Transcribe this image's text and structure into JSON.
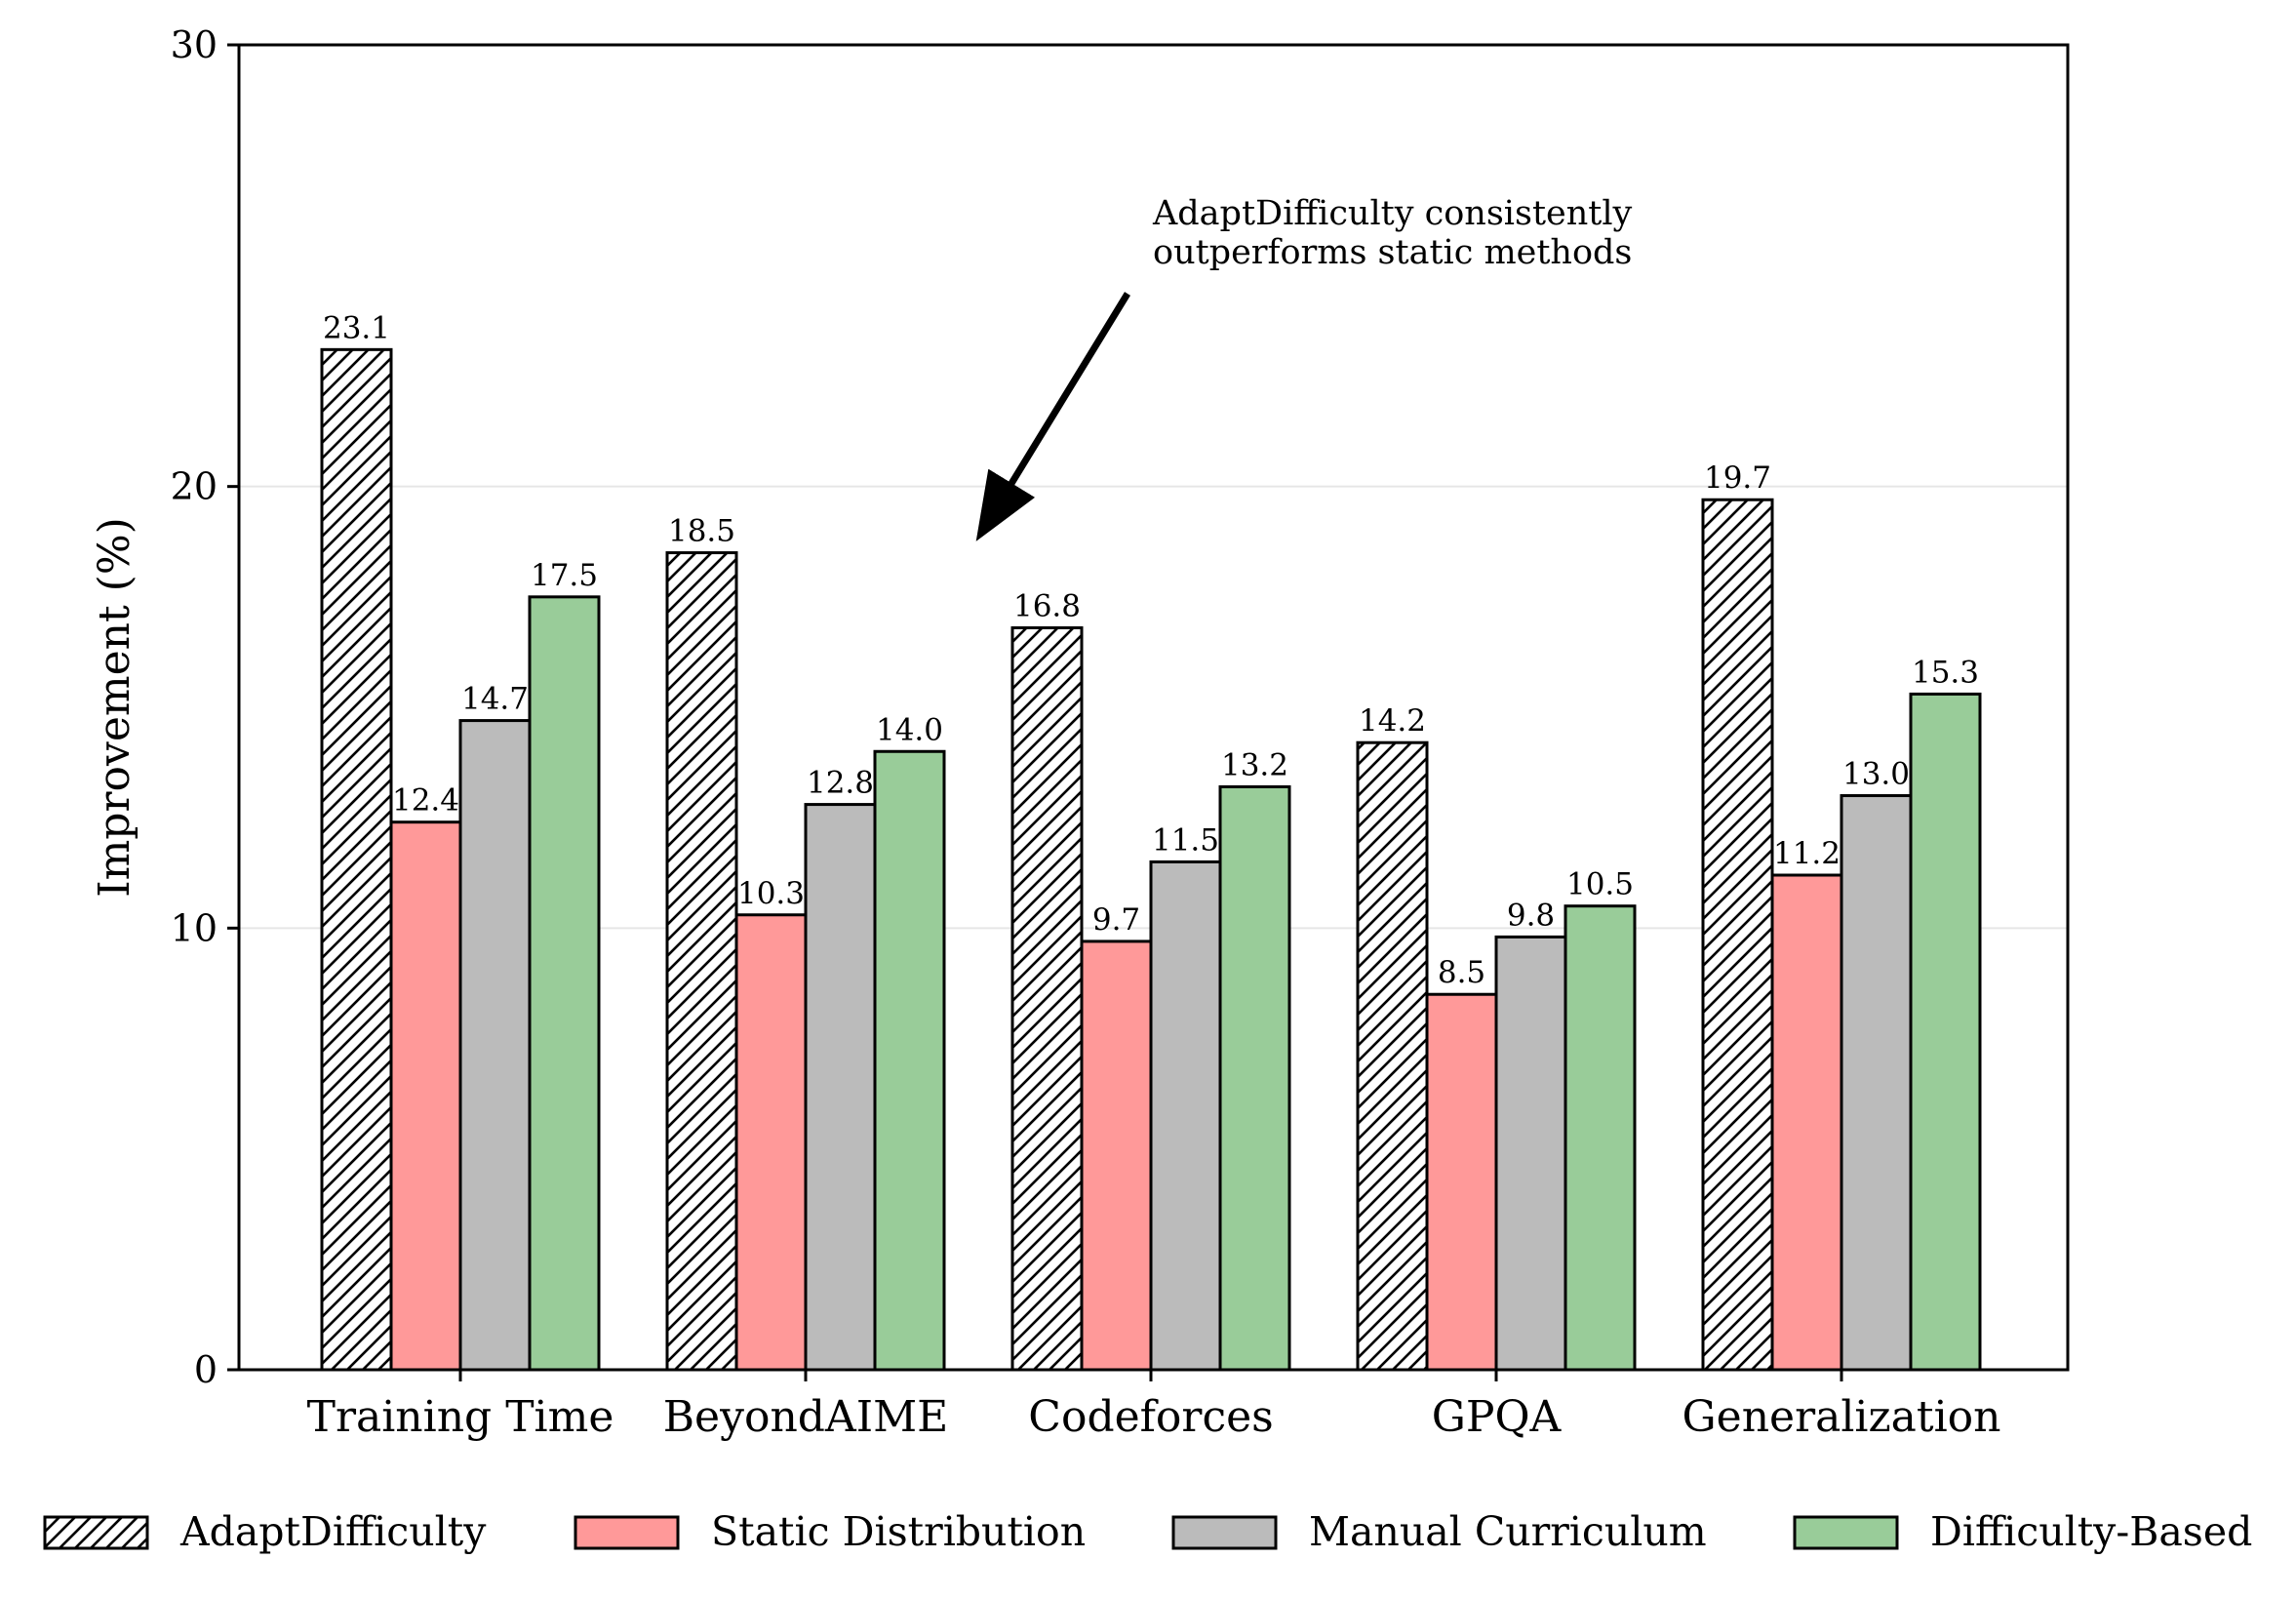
{
  "chart_data": {
    "type": "bar",
    "title": "",
    "xlabel": "",
    "ylabel": "Improvement (%)",
    "ylim": [
      0,
      30
    ],
    "yticks": [
      0,
      10,
      20,
      30
    ],
    "grid": "y",
    "legend_position": "bottom",
    "categories": [
      "Training Time",
      "BeyondAIME",
      "Codeforces",
      "GPQA",
      "Generalization"
    ],
    "series": [
      {
        "name": "AdaptDifficulty",
        "values": [
          23.1,
          18.5,
          16.8,
          14.2,
          19.7
        ],
        "color": "#ffffff",
        "pattern": "hatch"
      },
      {
        "name": "Static Distribution",
        "values": [
          12.4,
          10.3,
          9.7,
          8.5,
          11.2
        ],
        "color": "#ff9999"
      },
      {
        "name": "Manual Curriculum",
        "values": [
          14.7,
          12.8,
          11.5,
          9.8,
          13.0
        ],
        "color": "#bbbbbb"
      },
      {
        "name": "Difficulty-Based",
        "values": [
          17.5,
          14.0,
          13.2,
          10.5,
          15.3
        ],
        "color": "#99cc99"
      }
    ],
    "annotation": {
      "lines": [
        "AdaptDifficulty consistently",
        "outperforms static methods"
      ],
      "points_to": {
        "category": "BeyondAIME",
        "y": 18.8
      }
    }
  }
}
